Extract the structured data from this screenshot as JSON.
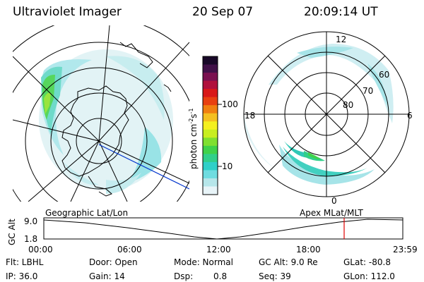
{
  "header": {
    "title": "Ultraviolet Imager",
    "date": "20 Sep 07",
    "time": "20:09:14 UT"
  },
  "colorbar": {
    "unit_label": "photon cm",
    "unit_sup1": "-2",
    "unit_mid": "s",
    "unit_sup2": "-1",
    "ticks": [
      "100",
      "10"
    ],
    "colors": [
      "#e8f4f8",
      "#b6e6ea",
      "#6fdce0",
      "#2fd0c8",
      "#31cf8a",
      "#3fd24a",
      "#7fe030",
      "#c8ee20",
      "#f4f020",
      "#f4c020",
      "#f08010",
      "#e84010",
      "#d81818",
      "#b0103c",
      "#7a1050",
      "#401048",
      "#180828"
    ]
  },
  "right_map": {
    "lat_labels": [
      "60",
      "70",
      "80"
    ],
    "mlt_labels": {
      "top": "12",
      "left": "18",
      "right": "6",
      "bottom": "0"
    }
  },
  "timeline": {
    "left_caption": "Geographic Lat/Lon",
    "right_caption": "Apex MLat/MLT",
    "yaxis_label": "GC Alt",
    "y_ticks": [
      "9.0",
      "1.8"
    ],
    "x_ticks": [
      "00:00",
      "06:00",
      "12:00",
      "18:00",
      "23:59"
    ],
    "marker_color": "#e00000"
  },
  "info": {
    "row1": {
      "flt": "Flt: LBHL",
      "door": "Door: Open",
      "mode": "Mode: Normal",
      "gcalt": "GC Alt: 9.0 Re",
      "glat": "GLat: -80.8"
    },
    "row2": {
      "ip": "IP: 36.0",
      "gain": "Gain: 14",
      "dsp_label": "Dsp:",
      "dsp_value": "0.8",
      "seq": "Seq: 39",
      "glon": "GLon: 112.0"
    }
  }
}
